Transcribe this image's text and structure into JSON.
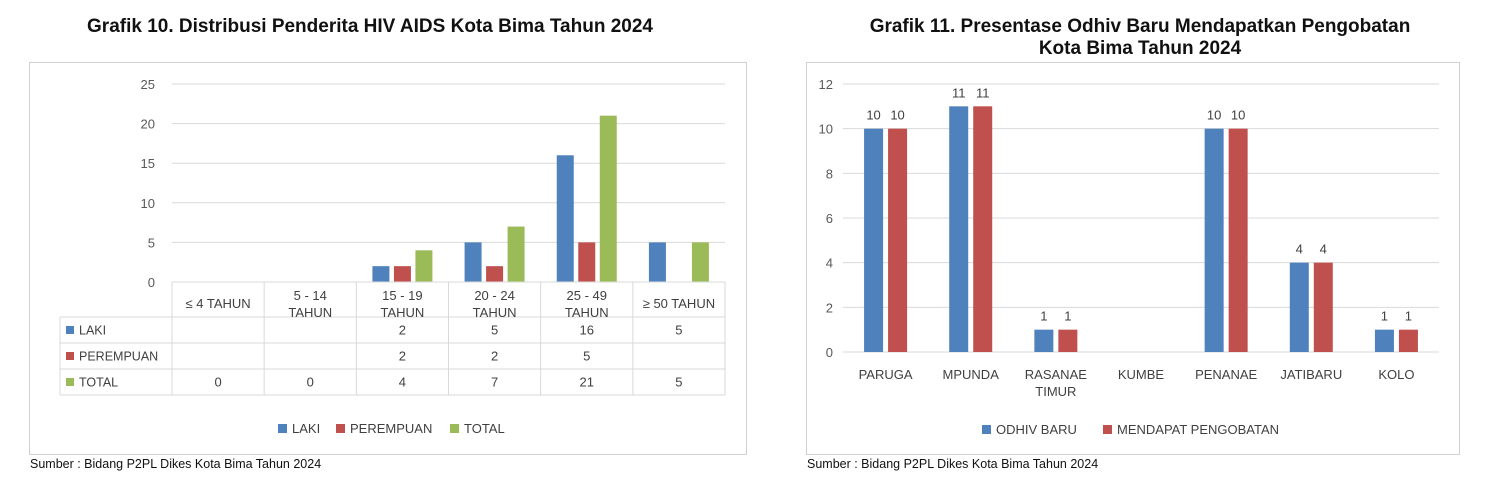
{
  "chart10": {
    "title": "Grafik 10. Distribusi Penderita HIV AIDS Kota Bima Tahun  2024",
    "source": "Sumber : Bidang P2PL Dikes Kota Bima Tahun  2024"
  },
  "chart11": {
    "title_line1": "Grafik 11. Presentase Odhiv Baru Mendapatkan Pengobatan",
    "title_line2": "Kota Bima Tahun  2024",
    "source": "Sumber : Bidang P2PL Dikes Kota Bima Tahun  2024"
  },
  "chart_data": [
    {
      "type": "bar",
      "title": "Grafik 10. Distribusi Penderita HIV AIDS Kota Bima Tahun  2024",
      "categories": [
        [
          "≤ 4 TAHUN"
        ],
        [
          "5 - 14",
          "TAHUN"
        ],
        [
          "15 - 19",
          "TAHUN"
        ],
        [
          "20 - 24",
          "TAHUN"
        ],
        [
          "25 - 49",
          "TAHUN"
        ],
        [
          "≥ 50 TAHUN"
        ]
      ],
      "series": [
        {
          "name": "LAKI",
          "color": "#4f81bd",
          "values": [
            null,
            null,
            2,
            5,
            16,
            5
          ]
        },
        {
          "name": "PEREMPUAN",
          "color": "#c0504d",
          "values": [
            null,
            null,
            2,
            2,
            5,
            null
          ]
        },
        {
          "name": "TOTAL",
          "color": "#9bbb59",
          "values": [
            0,
            0,
            4,
            7,
            21,
            5
          ]
        }
      ],
      "ylim": [
        0,
        25
      ],
      "yticks": [
        0,
        5,
        10,
        15,
        20,
        25
      ],
      "data_table": true,
      "legend": "bottom",
      "grid": true
    },
    {
      "type": "bar",
      "title": "Grafik 11. Presentase Odhiv Baru Mendapatkan Pengobatan Kota Bima Tahun  2024",
      "categories": [
        [
          "PARUGA"
        ],
        [
          "MPUNDA"
        ],
        [
          "RASANAE",
          "TIMUR"
        ],
        [
          "KUMBE"
        ],
        [
          "PENANAE"
        ],
        [
          "JATIBARU"
        ],
        [
          "KOLO"
        ]
      ],
      "series": [
        {
          "name": "ODHIV BARU",
          "color": "#4f81bd",
          "values": [
            10,
            11,
            1,
            null,
            10,
            4,
            1
          ]
        },
        {
          "name": "MENDAPAT PENGOBATAN",
          "color": "#c0504d",
          "values": [
            10,
            11,
            1,
            null,
            10,
            4,
            1
          ]
        }
      ],
      "ylim": [
        0,
        12
      ],
      "yticks": [
        0,
        2,
        4,
        6,
        8,
        10,
        12
      ],
      "data_labels": true,
      "legend": "bottom",
      "grid": true
    }
  ]
}
